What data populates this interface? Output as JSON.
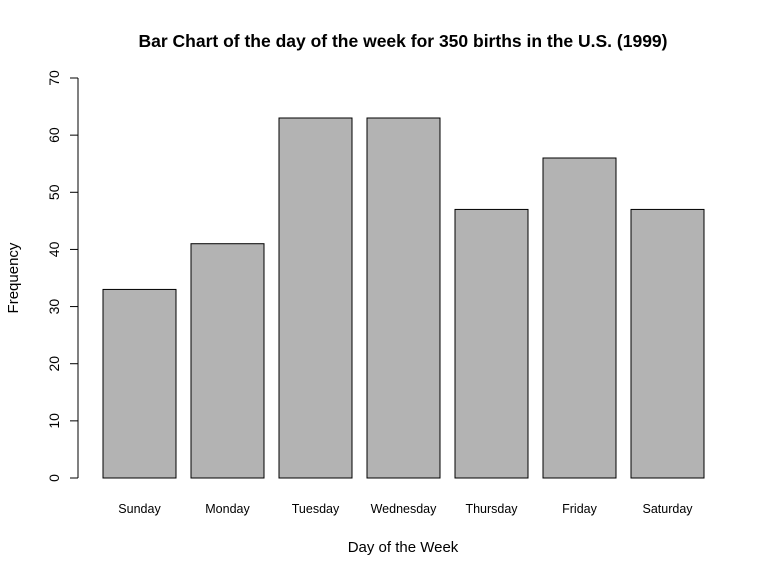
{
  "chart_data": {
    "type": "bar",
    "title": "Bar Chart of the day of the week for 350 births in the U.S. (1999)",
    "xlabel": "Day of the Week",
    "ylabel": "Frequency",
    "categories": [
      "Sunday",
      "Monday",
      "Tuesday",
      "Wednesday",
      "Thursday",
      "Friday",
      "Saturday"
    ],
    "values": [
      33,
      41,
      63,
      63,
      47,
      56,
      47
    ],
    "ylim": [
      0,
      70
    ],
    "yticks": [
      0,
      10,
      20,
      30,
      40,
      50,
      60,
      70
    ],
    "grid": false,
    "bar_color": "#b3b3b3",
    "bar_border_color": "#000000"
  }
}
